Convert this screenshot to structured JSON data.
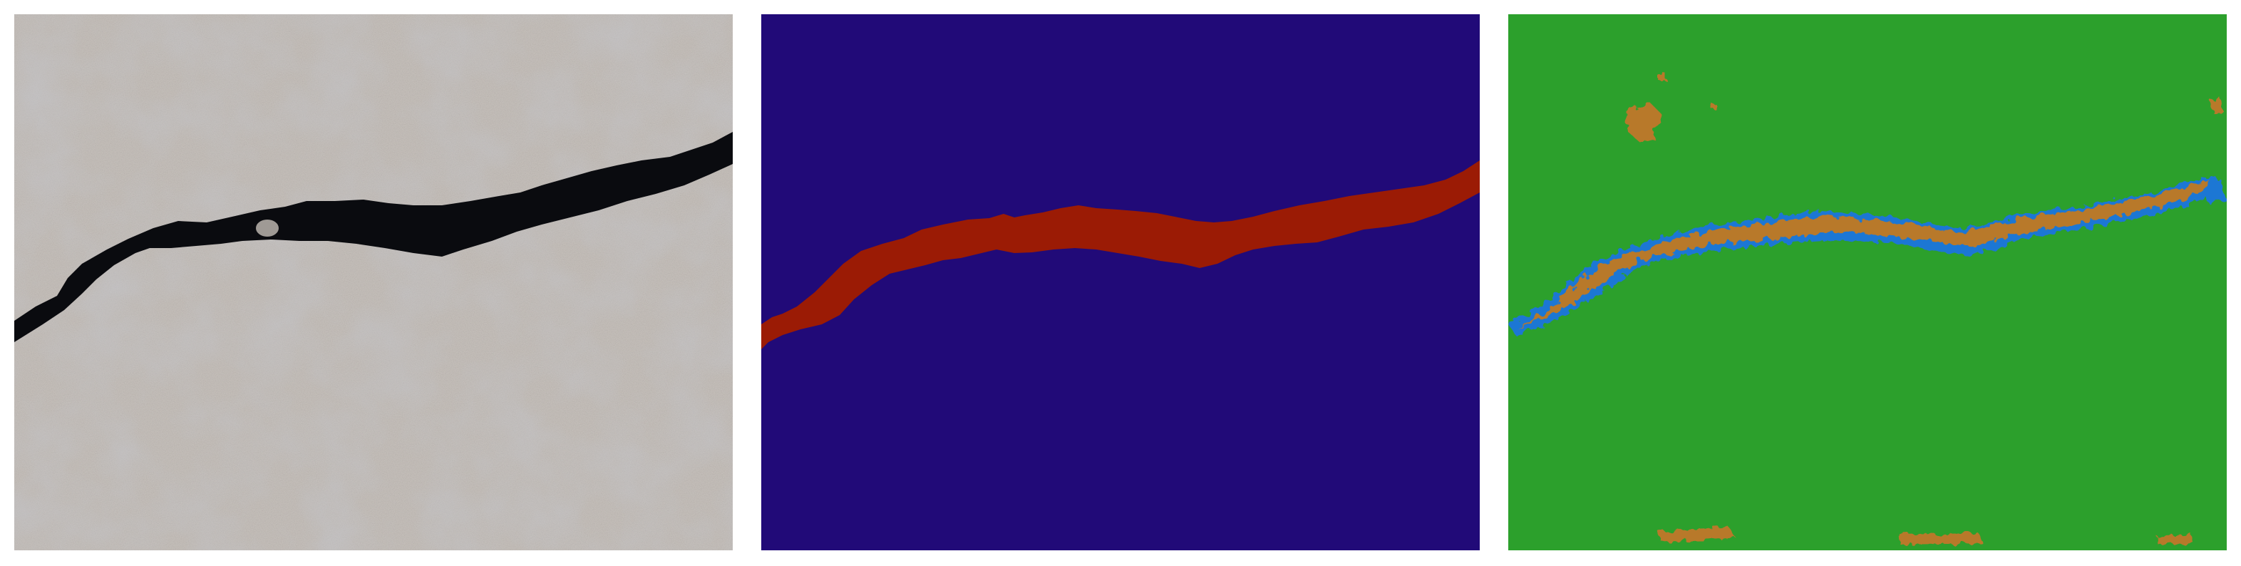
{
  "panels": [
    {
      "id": "input",
      "icon": "concrete-crack-photo-icon"
    },
    {
      "id": "ground_truth",
      "icon": "crack-mask-icon"
    },
    {
      "id": "prediction",
      "icon": "crack-prediction-icon"
    }
  ],
  "colors": {
    "photo_base": "#c7c1bc",
    "photo_dark": "#a9a7a8",
    "crack_black": "#0a0b0f",
    "mask_background": "#210a78",
    "mask_crack": "#9b1b05",
    "pred_background": "#2ca02c",
    "pred_crack": "#b8792c",
    "pred_edge": "#1f77d4"
  }
}
